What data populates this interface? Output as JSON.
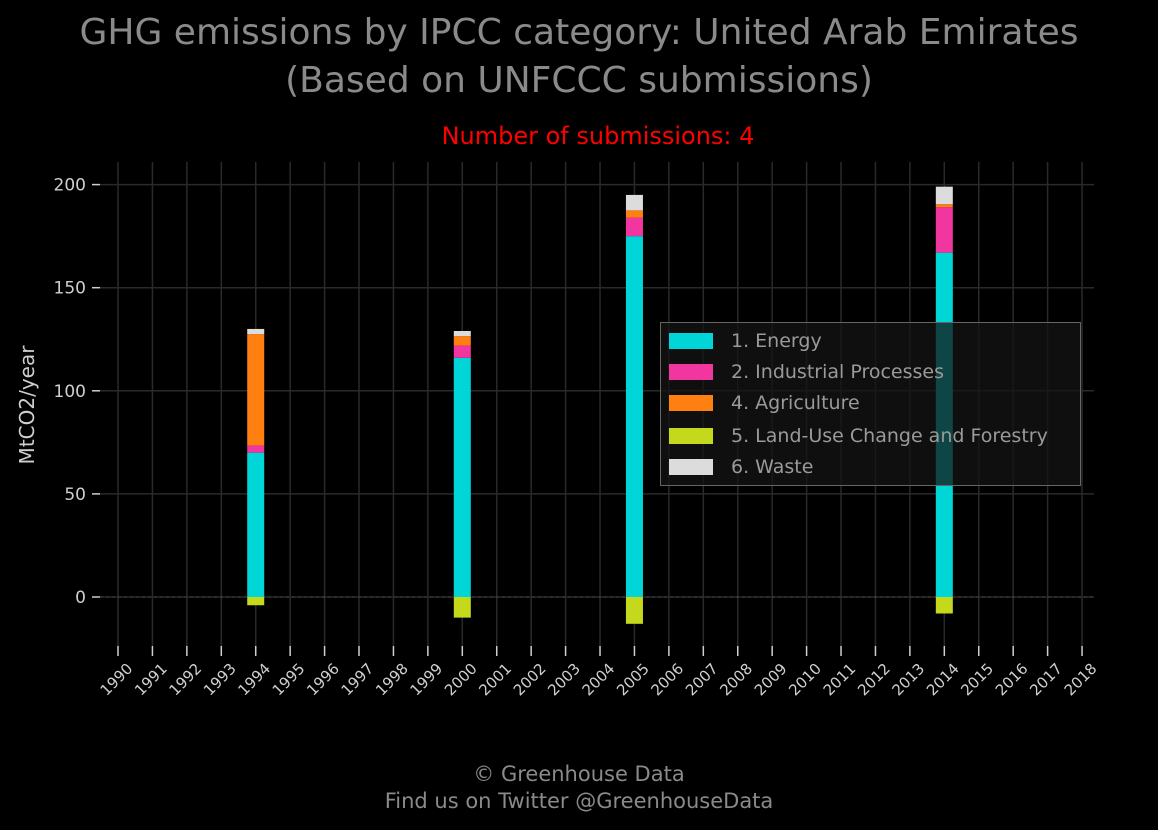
{
  "chart_data": {
    "type": "bar",
    "title_line1": "GHG emissions by IPCC category: United Arab Emirates",
    "title_line2": "(Based on UNFCCC submissions)",
    "subtitle": "Number of submissions: 4",
    "ylabel": "MtCO2/year",
    "ylim": [
      -25,
      210
    ],
    "yticks": [
      0,
      50,
      100,
      150,
      200
    ],
    "categories": [
      "1990",
      "1991",
      "1992",
      "1993",
      "1994",
      "1995",
      "1996",
      "1997",
      "1998",
      "1999",
      "2000",
      "2001",
      "2002",
      "2003",
      "2004",
      "2005",
      "2006",
      "2007",
      "2008",
      "2009",
      "2010",
      "2011",
      "2012",
      "2013",
      "2014",
      "2015",
      "2016",
      "2017",
      "2018"
    ],
    "series": [
      {
        "name": "1. Energy",
        "color": "#00d5d8",
        "values": {
          "1994": 70,
          "2000": 116,
          "2005": 175,
          "2014": 167
        }
      },
      {
        "name": "2. Industrial Processes",
        "color": "#f1369f",
        "values": {
          "1994": 3.5,
          "2000": 6,
          "2005": 9,
          "2014": 22
        }
      },
      {
        "name": "4. Agriculture",
        "color": "#ff7f11",
        "values": {
          "1994": 54,
          "2000": 4.5,
          "2005": 3.5,
          "2014": 1.5
        }
      },
      {
        "name": "5. Land-Use Change and Forestry",
        "color": "#c5d91c",
        "values": {
          "1994": -4,
          "2000": -10,
          "2005": -13,
          "2014": -8
        }
      },
      {
        "name": "6. Waste",
        "color": "#dcdcdc",
        "values": {
          "1994": 2.5,
          "2000": 2.5,
          "2005": 7.5,
          "2014": 8.5
        }
      }
    ],
    "grid": true,
    "legend_position": "center-right"
  },
  "credits": {
    "line1": "© Greenhouse Data",
    "line2": "Find us on Twitter @GreenhouseData"
  }
}
